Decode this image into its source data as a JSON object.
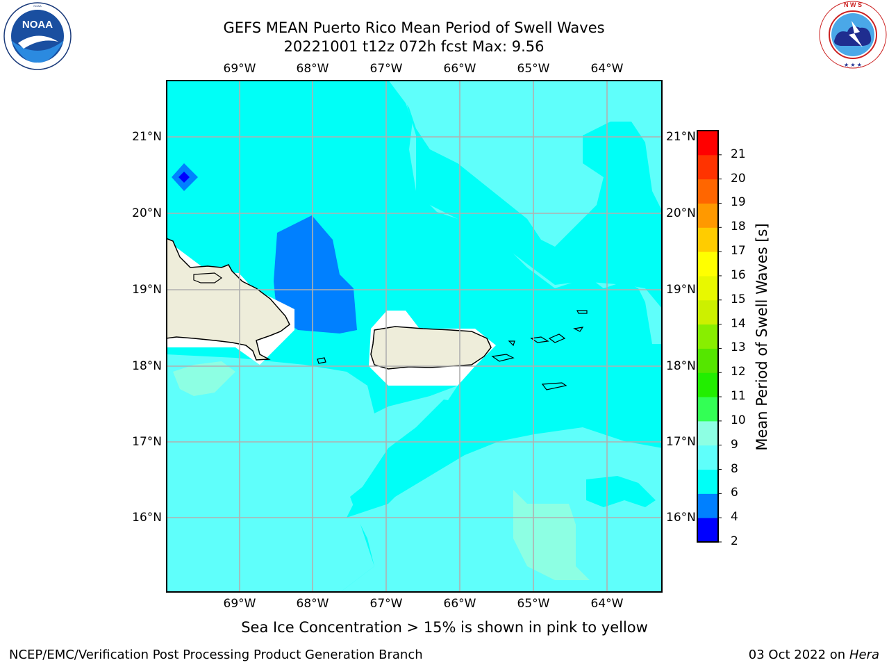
{
  "header": {
    "title_line1": "GEFS MEAN Puerto Rico Mean Period of Swell Waves",
    "title_line2": "20221001 t12z 072h fcst   Max: 9.56"
  },
  "logos": {
    "left": {
      "text": "NOAA",
      "ring_text": "NATIONAL OCEANIC AND ATMOSPHERIC ADMINISTRATION · U.S. DEPARTMENT OF COMMERCE"
    },
    "right": {
      "ring_text": "NATIONAL WEATHER SERVICE"
    }
  },
  "map": {
    "lon_labels": [
      "69°W",
      "68°W",
      "67°W",
      "66°W",
      "65°W",
      "64°W"
    ],
    "lat_labels": [
      "21°N",
      "20°N",
      "19°N",
      "18°N",
      "17°N",
      "16°N"
    ],
    "colors": {
      "light_cyan": "#5ffffb",
      "cyan": "#00fff7",
      "aqua": "#8dffe3",
      "blue": "#0080ff",
      "deep_blue": "#0000ff",
      "land": "#eeedda",
      "masked": "#ffffff",
      "grid": "#b0b0b0"
    }
  },
  "colorbar": {
    "label": "Mean Period of Swell Waves [s]",
    "ticks": [
      "2",
      "4",
      "6",
      "8",
      "9",
      "10",
      "11",
      "12",
      "13",
      "14",
      "15",
      "16",
      "17",
      "18",
      "19",
      "20",
      "21"
    ],
    "colors": [
      "#0000ff",
      "#0080ff",
      "#00fff7",
      "#5ffffb",
      "#8dffe3",
      "#33ff55",
      "#22ee00",
      "#55e600",
      "#88ee00",
      "#ccf000",
      "#e8f800",
      "#ffff00",
      "#ffcc00",
      "#ff9900",
      "#ff6600",
      "#ff3300",
      "#ff0000"
    ]
  },
  "footer": {
    "sea_ice_note": "Sea Ice Concentration > 15% is shown in pink to yellow",
    "branch": "NCEP/EMC/Verification Post Processing Product Generation Branch",
    "date_prefix": "03 Oct 2022 on ",
    "machine": "Hera"
  }
}
